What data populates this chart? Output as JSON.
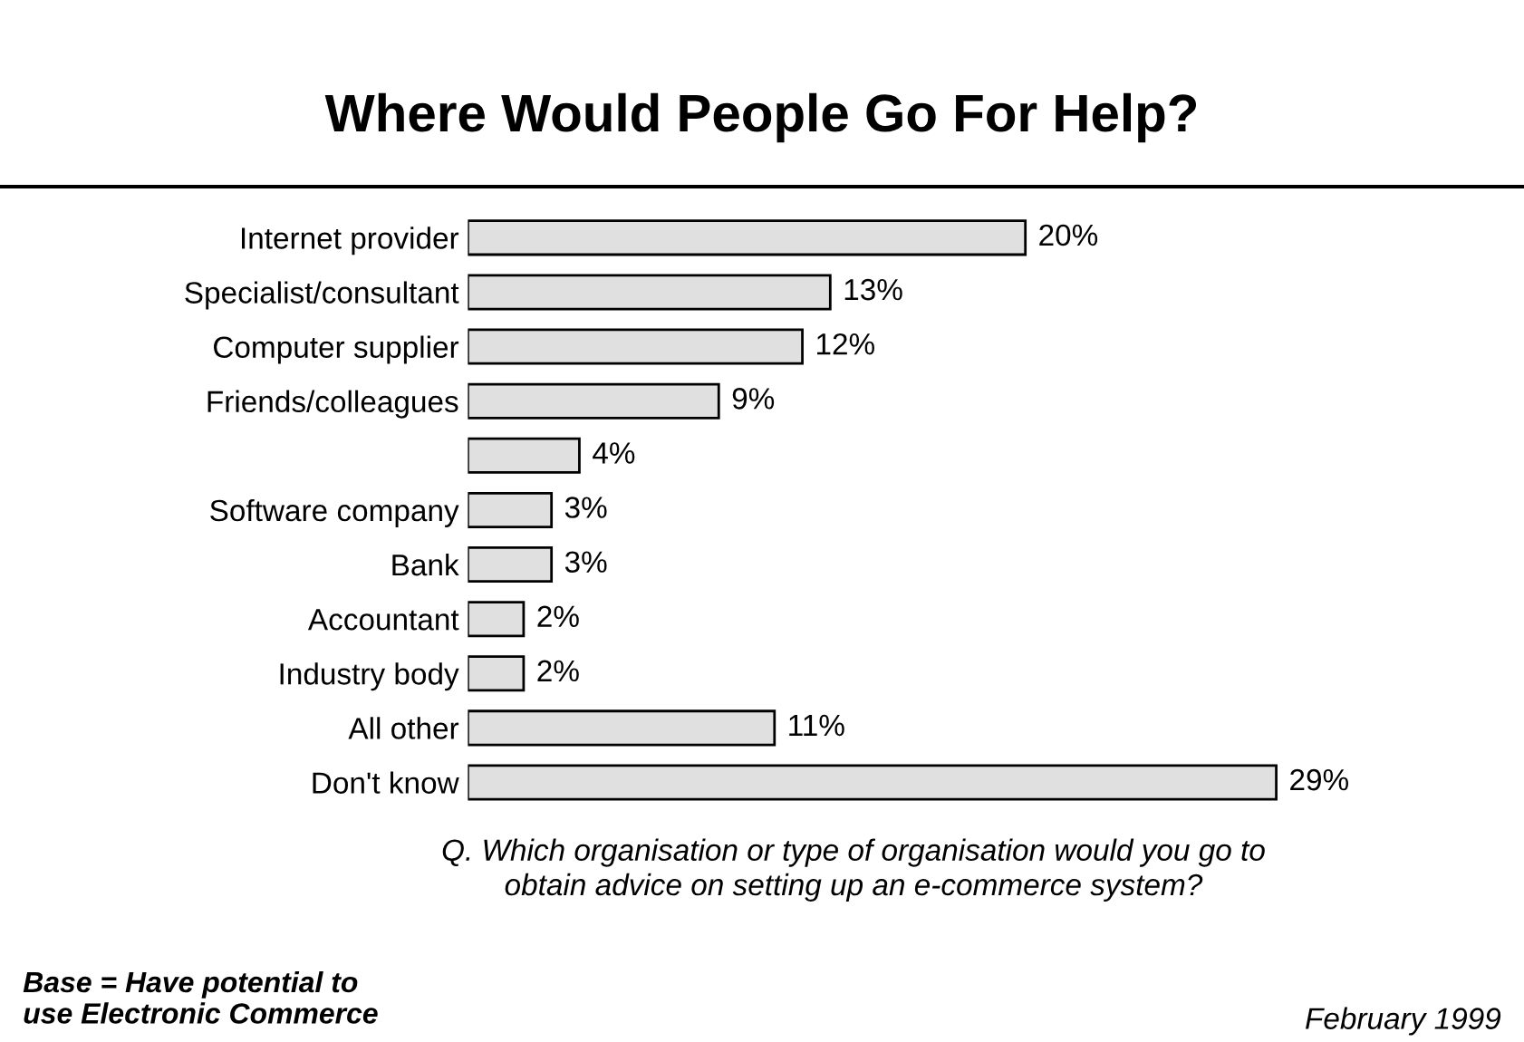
{
  "chart_data": {
    "type": "bar",
    "orientation": "horizontal",
    "title": "Where Would People Go For Help?",
    "categories": [
      "Internet provider",
      "Specialist/consultant",
      "Computer supplier",
      "Friends/colleagues",
      null,
      "Software company",
      "Bank",
      "Accountant",
      "Industry body",
      "All other",
      "Don't know"
    ],
    "values": [
      20,
      13,
      12,
      9,
      4,
      3,
      3,
      2,
      2,
      11,
      29
    ],
    "value_labels": [
      "20%",
      "13%",
      "12%",
      "9%",
      "4%",
      "3%",
      "3%",
      "2%",
      "2%",
      "11%",
      "29%"
    ],
    "color": "#e0e0e0",
    "grid": false,
    "legend": false,
    "tick_labels": "y",
    "annotations": [
      "Q. Which organisation or type of organisation would you go to\nobtain advice on setting up an e-commerce system?",
      "Base = Have potential to\nuse Electronic Commerce",
      "February 1999"
    ]
  }
}
